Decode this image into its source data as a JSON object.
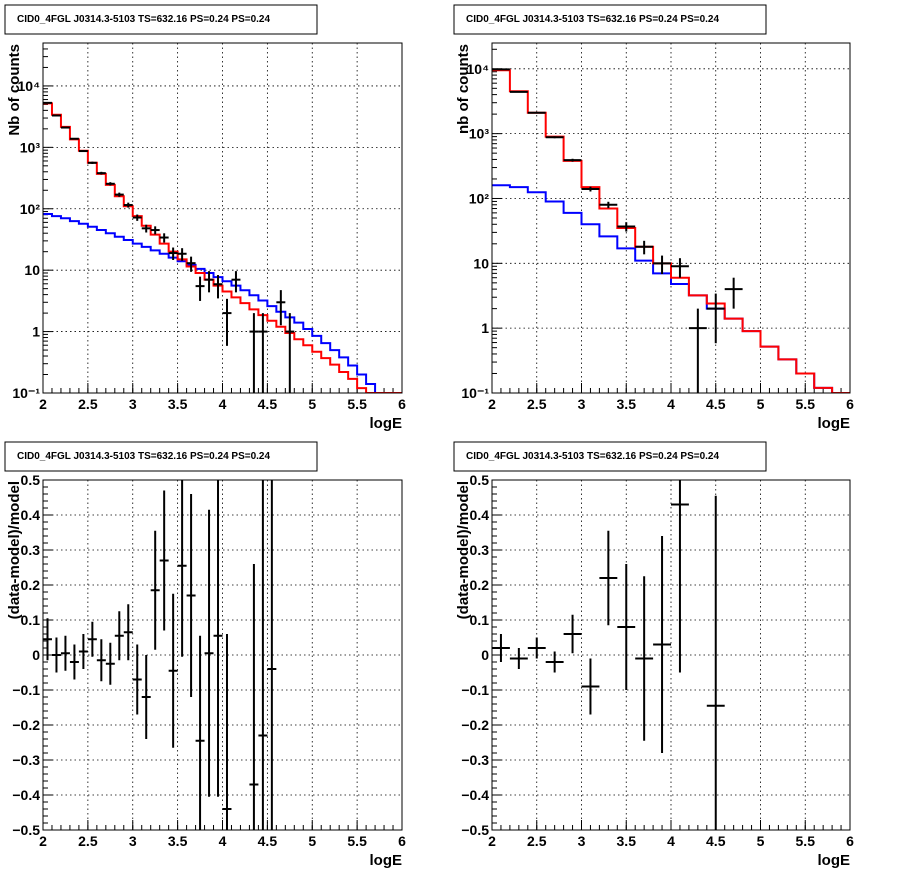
{
  "colors": {
    "total_model": "#ff0000",
    "background_model": "#0000ff",
    "data": "#000000"
  },
  "chart_data": [
    {
      "type": "line",
      "title": "CID0_4FGL J0314.3-5103 TS=632.16 PS=0.24 PS=0.24",
      "xlabel": "logE",
      "ylabel": "Nb of counts",
      "xlim": [
        2,
        6
      ],
      "ylim": [
        0.1,
        50000
      ],
      "log_y": true,
      "grid": true,
      "x_ticks": [
        2,
        2.5,
        3,
        3.5,
        4,
        4.5,
        5,
        5.5,
        6
      ],
      "x_tick_labels": [
        "2",
        "2.5",
        "3",
        "3.5",
        "4",
        "4.5",
        "5",
        "5.5",
        "6"
      ],
      "y_ticks": [
        0.1,
        1,
        10,
        100,
        1000,
        10000
      ],
      "y_tick_labels": [
        "10⁻¹",
        "1",
        "10",
        "10²",
        "10³",
        "10⁴"
      ],
      "bin_edges": [
        2.0,
        2.1,
        2.2,
        2.3,
        2.4,
        2.5,
        2.6,
        2.7,
        2.8,
        2.9,
        3.0,
        3.1,
        3.2,
        3.3,
        3.4,
        3.5,
        3.6,
        3.7,
        3.8,
        3.9,
        4.0,
        4.1,
        4.2,
        4.3,
        4.4,
        4.5,
        4.6,
        4.7,
        4.8,
        4.9,
        5.0,
        5.1,
        5.2,
        5.3,
        5.4,
        5.5,
        5.6,
        5.7,
        5.8,
        5.9,
        6.0
      ],
      "series": [
        {
          "values": [
            5200,
            3400,
            2150,
            1350,
            880,
            560,
            370,
            245,
            160,
            110,
            76,
            53,
            38,
            27,
            20,
            15,
            11.5,
            9,
            7,
            5.6,
            4.5,
            3.6,
            2.9,
            2.3,
            1.85,
            1.5,
            1.2,
            0.95,
            0.75,
            0.6,
            0.47,
            0.37,
            0.29,
            0.22,
            0.17,
            0.12,
            0.1,
            0.1,
            0.1,
            0.1
          ]
        },
        {
          "values": [
            82,
            76,
            70,
            63,
            57,
            51,
            45,
            40,
            35,
            31,
            27,
            24,
            21,
            18.5,
            16,
            14,
            12.2,
            10.5,
            9,
            7.7,
            6.6,
            5.6,
            4.7,
            3.9,
            3.2,
            2.6,
            2.1,
            1.7,
            1.4,
            1.1,
            0.85,
            0.65,
            0.5,
            0.38,
            0.28,
            0.2,
            0.14,
            0.1,
            0.1,
            0.1
          ]
        }
      ],
      "data_points": [
        {
          "x": 2.05,
          "y": 5300
        },
        {
          "x": 2.15,
          "y": 3300
        },
        {
          "x": 2.25,
          "y": 2100
        },
        {
          "x": 2.35,
          "y": 1380
        },
        {
          "x": 2.45,
          "y": 870
        },
        {
          "x": 2.55,
          "y": 560
        },
        {
          "x": 2.65,
          "y": 380
        },
        {
          "x": 2.75,
          "y": 255
        },
        {
          "x": 2.85,
          "y": 170
        },
        {
          "x": 2.95,
          "y": 115
        },
        {
          "x": 3.05,
          "y": 72
        },
        {
          "x": 3.15,
          "y": 48
        },
        {
          "x": 3.25,
          "y": 45
        },
        {
          "x": 3.35,
          "y": 34
        },
        {
          "x": 3.45,
          "y": 19
        },
        {
          "x": 3.55,
          "y": 18.5
        },
        {
          "x": 3.65,
          "y": 13
        },
        {
          "x": 3.75,
          "y": 5.5
        },
        {
          "x": 3.85,
          "y": 7
        },
        {
          "x": 3.95,
          "y": 5.9
        },
        {
          "x": 4.05,
          "y": 2
        },
        {
          "x": 4.15,
          "y": 7
        },
        {
          "x": 4.35,
          "y": 1
        },
        {
          "x": 4.45,
          "y": 1
        },
        {
          "x": 4.65,
          "y": 3
        },
        {
          "x": 4.75,
          "y": 1
        }
      ]
    },
    {
      "type": "line",
      "title": "CID0_4FGL J0314.3-5103 TS=632.16 PS=0.24 PS=0.24",
      "xlabel": "logE",
      "ylabel": "nb of counts",
      "xlim": [
        2,
        6
      ],
      "ylim": [
        0.1,
        25000
      ],
      "log_y": true,
      "grid": true,
      "x_ticks": [
        2,
        2.5,
        3,
        3.5,
        4,
        4.5,
        5,
        5.5,
        6
      ],
      "x_tick_labels": [
        "2",
        "2.5",
        "3",
        "3.5",
        "4",
        "4.5",
        "5",
        "5.5",
        "6"
      ],
      "y_ticks": [
        0.1,
        1,
        10,
        100,
        1000,
        10000
      ],
      "y_tick_labels": [
        "10⁻¹",
        "1",
        "10",
        "10²",
        "10³",
        "10⁴"
      ],
      "bin_edges": [
        2.0,
        2.2,
        2.4,
        2.6,
        2.8,
        3.0,
        3.2,
        3.4,
        3.6,
        3.8,
        4.0,
        4.2,
        4.4,
        4.6,
        4.8,
        5.0,
        5.2,
        5.4,
        5.6,
        5.8,
        6.0
      ],
      "series": [
        {
          "values": [
            9500,
            4500,
            2100,
            900,
            380,
            150,
            70,
            35,
            18,
            10,
            6,
            3.2,
            2.4,
            1.4,
            0.9,
            0.52,
            0.33,
            0.2,
            0.12,
            0.1
          ]
        },
        {
          "values": [
            160,
            150,
            125,
            90,
            60,
            40,
            26,
            17,
            11,
            7,
            4.8,
            3.2,
            2.0,
            1.4,
            0.9,
            0.52,
            0.33,
            0.2,
            0.12,
            0.1
          ]
        }
      ],
      "data_points": [
        {
          "x": 2.1,
          "y": 9800
        },
        {
          "x": 2.3,
          "y": 4400
        },
        {
          "x": 2.5,
          "y": 2100
        },
        {
          "x": 2.7,
          "y": 880
        },
        {
          "x": 2.9,
          "y": 390
        },
        {
          "x": 3.1,
          "y": 140
        },
        {
          "x": 3.3,
          "y": 80
        },
        {
          "x": 3.5,
          "y": 37
        },
        {
          "x": 3.7,
          "y": 18
        },
        {
          "x": 3.9,
          "y": 10
        },
        {
          "x": 4.1,
          "y": 9
        },
        {
          "x": 4.3,
          "y": 1
        },
        {
          "x": 4.5,
          "y": 2
        },
        {
          "x": 4.7,
          "y": 4
        }
      ]
    },
    {
      "type": "scatter",
      "title": "CID0_4FGL J0314.3-5103 TS=632.16 PS=0.24 PS=0.24",
      "xlabel": "logE",
      "ylabel": "(data-model)/model",
      "xlim": [
        2,
        6
      ],
      "ylim": [
        -0.5,
        0.5
      ],
      "grid": true,
      "x_ticks": [
        2,
        2.5,
        3,
        3.5,
        4,
        4.5,
        5,
        5.5,
        6
      ],
      "x_tick_labels": [
        "2",
        "2.5",
        "3",
        "3.5",
        "4",
        "4.5",
        "5",
        "5.5",
        "6"
      ],
      "y_ticks": [
        -0.5,
        -0.4,
        -0.3,
        -0.2,
        -0.1,
        0,
        0.1,
        0.2,
        0.3,
        0.4,
        0.5
      ],
      "y_tick_labels": [
        "−0.5",
        "−0.4",
        "−0.3",
        "−0.2",
        "−0.1",
        "0",
        "0.1",
        "0.2",
        "0.3",
        "0.4",
        "0.5"
      ],
      "x_half_width": 0.05,
      "points": [
        {
          "x": 2.05,
          "y": 0.045,
          "err": 0.06
        },
        {
          "x": 2.15,
          "y": 0.0,
          "err": 0.05
        },
        {
          "x": 2.25,
          "y": 0.005,
          "err": 0.05
        },
        {
          "x": 2.35,
          "y": -0.02,
          "err": 0.05
        },
        {
          "x": 2.45,
          "y": 0.01,
          "err": 0.05
        },
        {
          "x": 2.55,
          "y": 0.045,
          "err": 0.05
        },
        {
          "x": 2.65,
          "y": -0.015,
          "err": 0.06
        },
        {
          "x": 2.75,
          "y": -0.025,
          "err": 0.06
        },
        {
          "x": 2.85,
          "y": 0.055,
          "err": 0.07
        },
        {
          "x": 2.95,
          "y": 0.065,
          "err": 0.08
        },
        {
          "x": 3.05,
          "y": -0.07,
          "err": 0.1
        },
        {
          "x": 3.15,
          "y": -0.12,
          "err": 0.12
        },
        {
          "x": 3.25,
          "y": 0.185,
          "err": 0.17
        },
        {
          "x": 3.35,
          "y": 0.27,
          "err": 0.2
        },
        {
          "x": 3.45,
          "y": -0.045,
          "err": 0.22
        },
        {
          "x": 3.55,
          "y": 0.255,
          "err": 0.26
        },
        {
          "x": 3.65,
          "y": 0.17,
          "err": 0.29
        },
        {
          "x": 3.75,
          "y": -0.245,
          "err": 0.3
        },
        {
          "x": 3.85,
          "y": 0.005,
          "err": 0.41
        },
        {
          "x": 3.95,
          "y": 0.055,
          "err": 0.46
        },
        {
          "x": 4.05,
          "y": -0.44,
          "err": 0.5
        },
        {
          "x": 4.35,
          "y": -0.37,
          "err": 0.63
        },
        {
          "x": 4.45,
          "y": -0.23,
          "err": 0.8
        },
        {
          "x": 4.55,
          "y": -0.04,
          "err": 1.0
        }
      ]
    },
    {
      "type": "scatter",
      "title": "CID0_4FGL J0314.3-5103 TS=632.16 PS=0.24 PS=0.24",
      "xlabel": "logE",
      "ylabel": "(data-model)/model",
      "xlim": [
        2,
        6
      ],
      "ylim": [
        -0.5,
        0.5
      ],
      "grid": true,
      "x_ticks": [
        2,
        2.5,
        3,
        3.5,
        4,
        4.5,
        5,
        5.5,
        6
      ],
      "x_tick_labels": [
        "2",
        "2.5",
        "3",
        "3.5",
        "4",
        "4.5",
        "5",
        "5.5",
        "6"
      ],
      "y_ticks": [
        -0.5,
        -0.4,
        -0.3,
        -0.2,
        -0.1,
        0,
        0.1,
        0.2,
        0.3,
        0.4,
        0.5
      ],
      "y_tick_labels": [
        "−0.5",
        "−0.4",
        "−0.3",
        "−0.2",
        "−0.1",
        "0",
        "0.1",
        "0.2",
        "0.3",
        "0.4",
        "0.5"
      ],
      "x_half_width": 0.1,
      "points": [
        {
          "x": 2.1,
          "y": 0.02,
          "err": 0.04
        },
        {
          "x": 2.3,
          "y": -0.01,
          "err": 0.03
        },
        {
          "x": 2.5,
          "y": 0.02,
          "err": 0.03
        },
        {
          "x": 2.7,
          "y": -0.02,
          "err": 0.03
        },
        {
          "x": 2.9,
          "y": 0.06,
          "err": 0.055
        },
        {
          "x": 3.1,
          "y": -0.09,
          "err": 0.08
        },
        {
          "x": 3.3,
          "y": 0.22,
          "err": 0.135
        },
        {
          "x": 3.5,
          "y": 0.08,
          "err": 0.18
        },
        {
          "x": 3.7,
          "y": -0.01,
          "err": 0.235
        },
        {
          "x": 3.9,
          "y": 0.03,
          "err": 0.31
        },
        {
          "x": 4.1,
          "y": 0.43,
          "err": 0.48
        },
        {
          "x": 4.5,
          "y": -0.145,
          "err": 0.6
        }
      ]
    }
  ]
}
